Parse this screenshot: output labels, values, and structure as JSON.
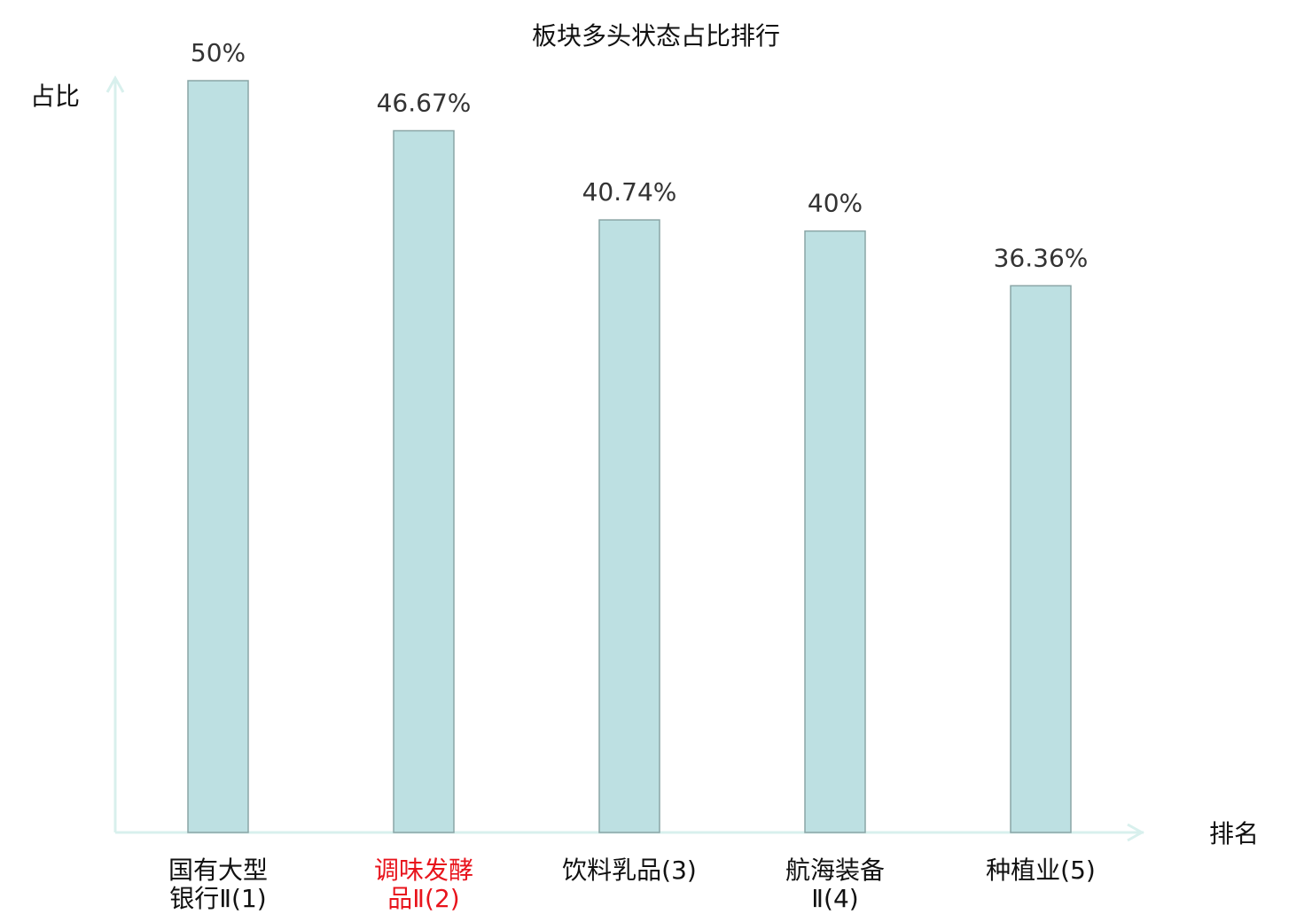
{
  "chart_data": {
    "type": "bar",
    "title": "板块多头状态占比排行",
    "y_label": "占比",
    "x_label": "排名",
    "categories": [
      [
        "国有大型",
        "银行Ⅱ(1)"
      ],
      [
        "调味发酵",
        "品Ⅱ(2)"
      ],
      [
        "饮料乳品(3)"
      ],
      [
        "航海装备",
        "Ⅱ(4)"
      ],
      [
        "种植业(5)"
      ]
    ],
    "label_colors": [
      "#111111",
      "#e8141c",
      "#111111",
      "#111111",
      "#111111"
    ],
    "values": [
      50,
      46.67,
      40.74,
      40,
      36.36
    ],
    "value_labels": [
      "50%",
      "46.67%",
      "40.74%",
      "40%",
      "36.36%"
    ],
    "color": "#bde0e2",
    "edge_color": "#8aa5a6",
    "axis_color": "#d8f0ed",
    "ylim": [
      0,
      50
    ]
  }
}
